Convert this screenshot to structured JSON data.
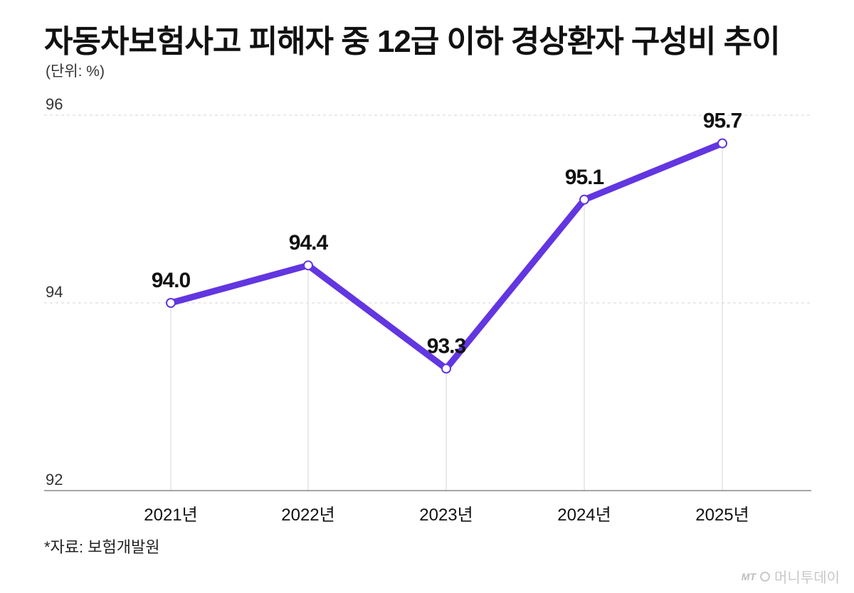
{
  "title": "자동차보험사고 피해자 중 12급 이하 경상환자 구성비 추이",
  "unit_label": "(단위: %)",
  "source": "*자료: 보험개발원",
  "brand": {
    "logo_text": "MT",
    "name": "머니투데이"
  },
  "colors": {
    "line": "#6236e0",
    "marker_fill": "#ffffff",
    "grid": "#d6d6d6",
    "axis": "#888888"
  },
  "chart_data": {
    "type": "line",
    "title": "자동차보험사고 피해자 중 12급 이하 경상환자 구성비 추이",
    "ylabel": "(단위: %)",
    "xlabel": "",
    "categories": [
      "2021년",
      "2022년",
      "2023년",
      "2024년",
      "2025년"
    ],
    "series": [
      {
        "values": [
          94.0,
          94.4,
          93.3,
          95.1,
          95.7
        ],
        "labels": [
          "94.0",
          "94.4",
          "93.3",
          "95.1",
          "95.7"
        ]
      }
    ],
    "yticks": [
      92,
      94,
      96
    ],
    "ylim": [
      92,
      96
    ],
    "grid": "horizontal dashed at 94 and 96, vertical guide lines at each category",
    "legend": "none"
  }
}
